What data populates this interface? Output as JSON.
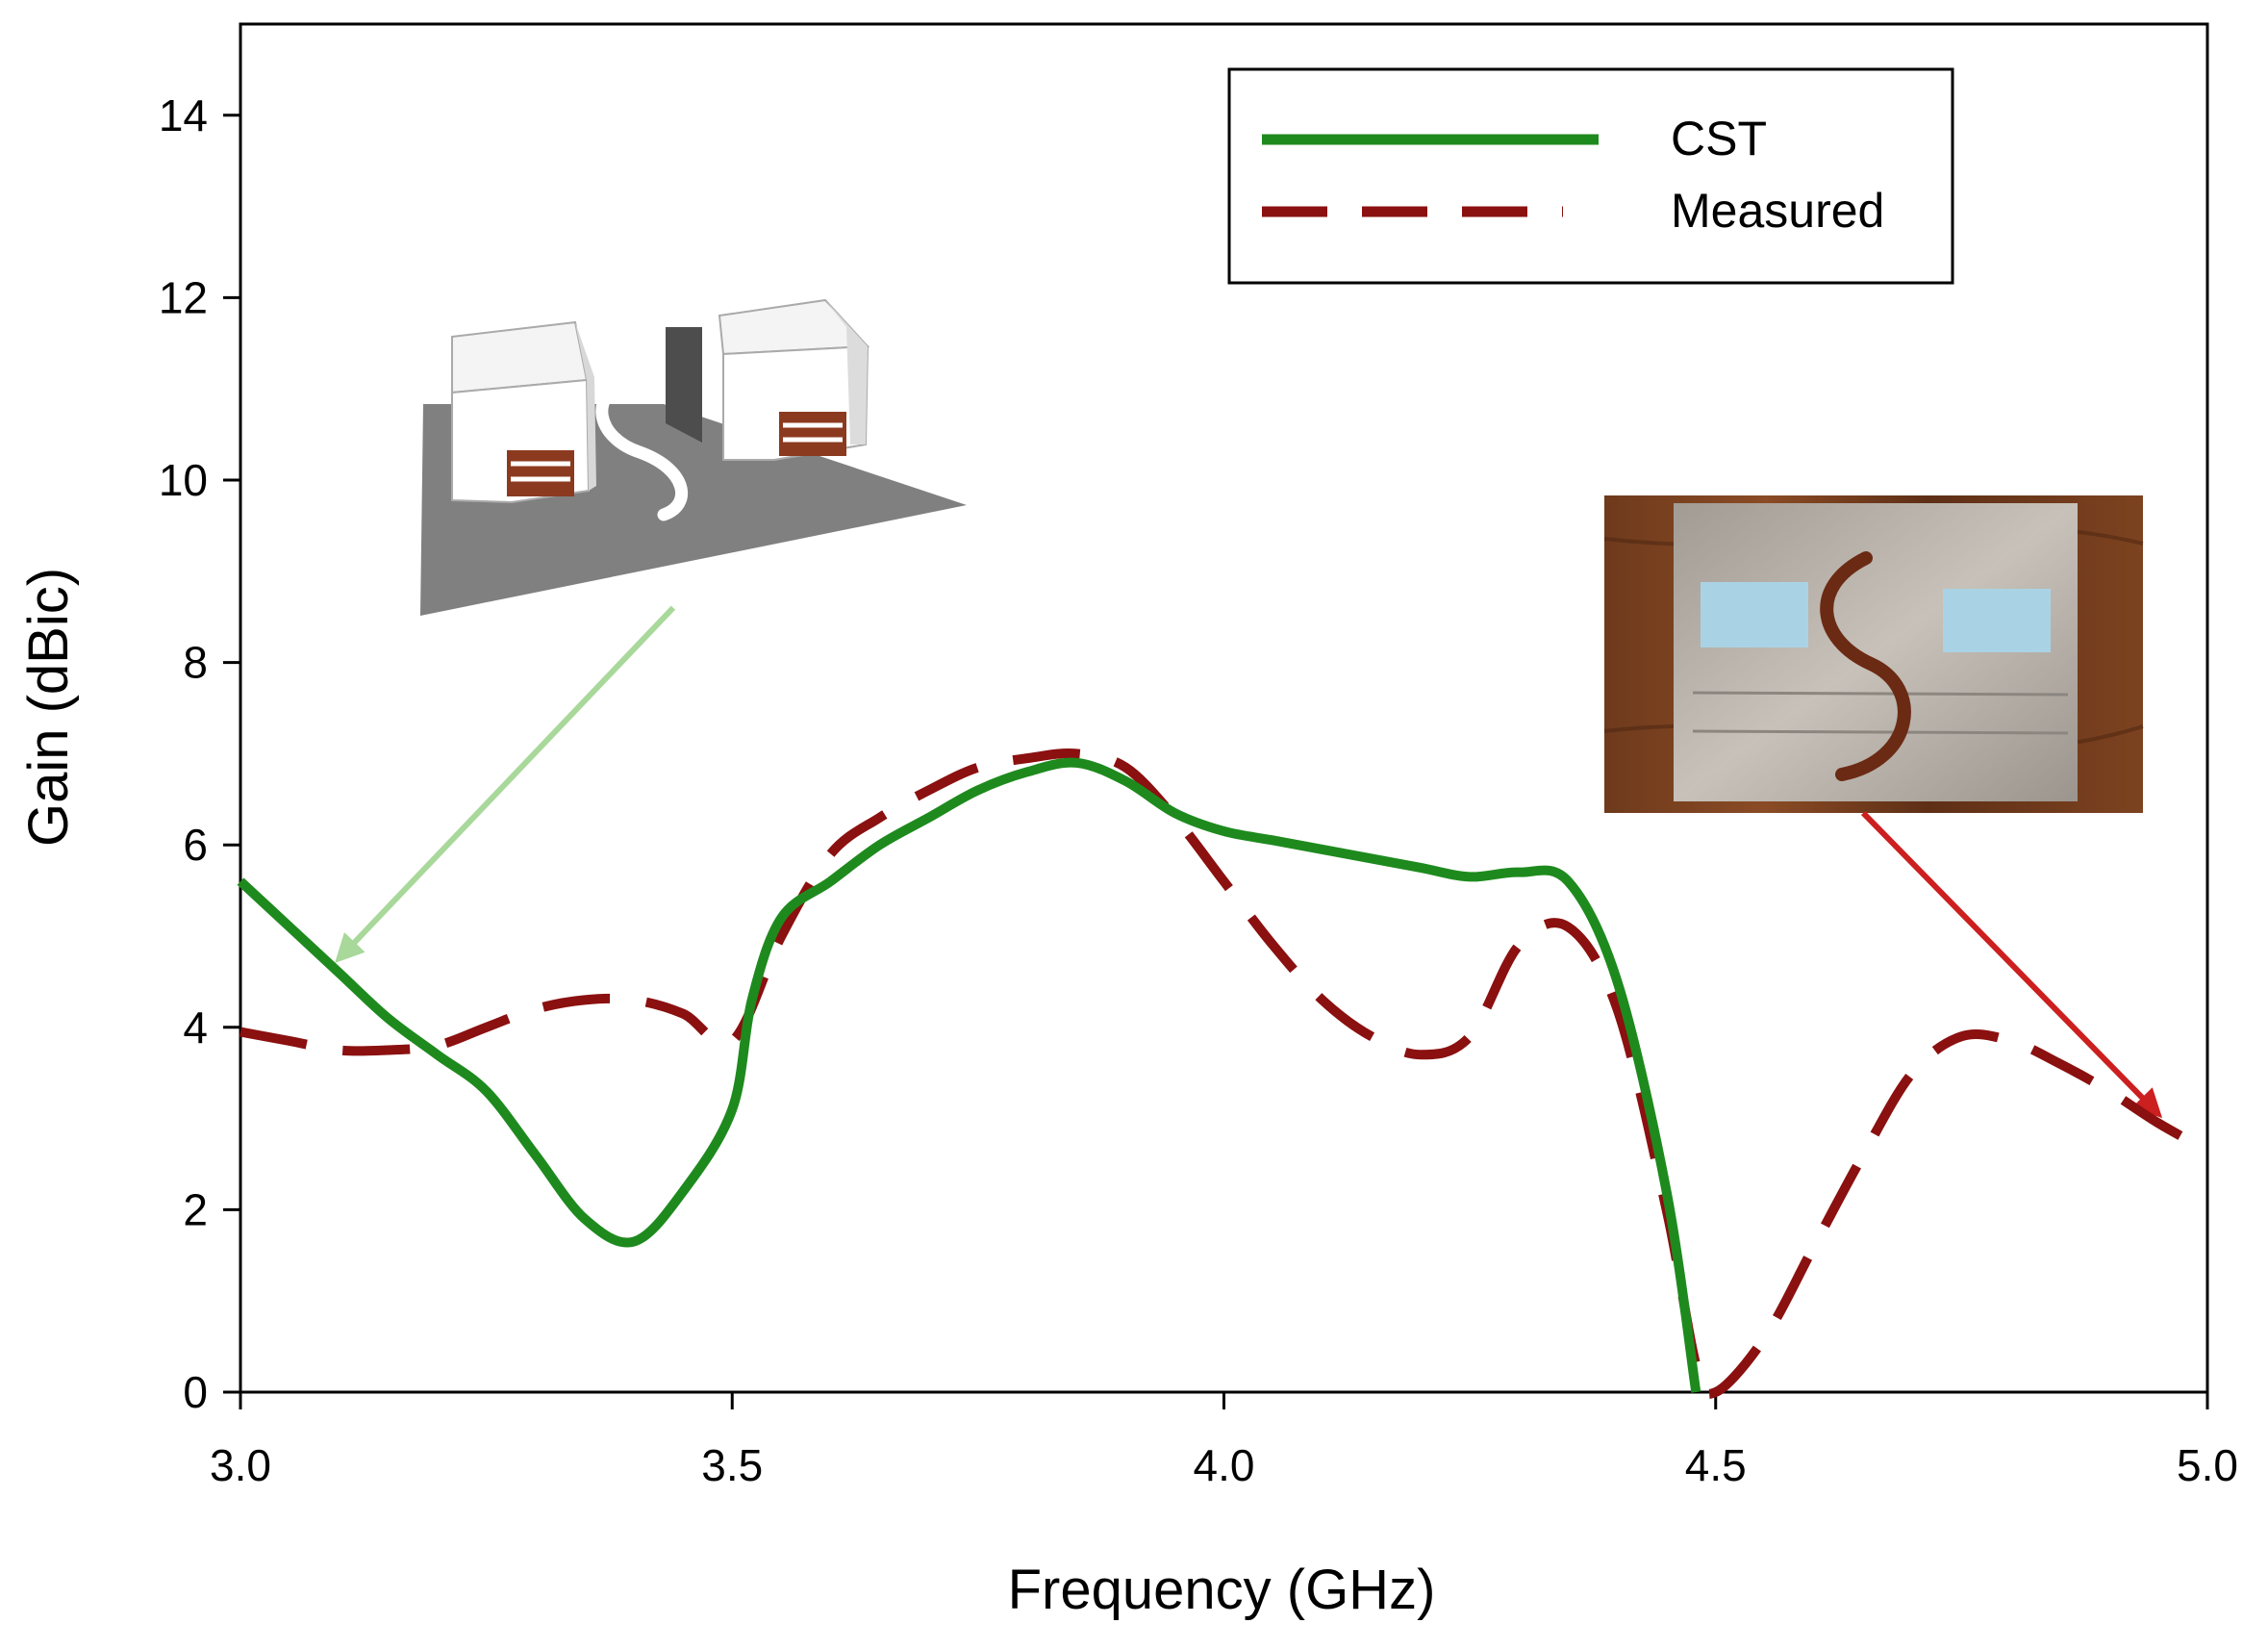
{
  "chart_data": {
    "type": "line",
    "title": "",
    "xlabel": "Frequency (GHz)",
    "ylabel": "Gain (dBic)",
    "xlim": [
      3.0,
      5.0
    ],
    "ylim": [
      0,
      15
    ],
    "xticks": [
      3.0,
      3.5,
      4.0,
      4.5,
      5.0
    ],
    "xtick_labels": [
      "3.0",
      "3.5",
      "4.0",
      "4.5",
      "5.0"
    ],
    "yticks": [
      0,
      2,
      4,
      6,
      8,
      10,
      12,
      14
    ],
    "ytick_labels": [
      "0",
      "2",
      "4",
      "6",
      "8",
      "10",
      "12",
      "14"
    ],
    "grid": false,
    "legend_position": "top-right",
    "series": [
      {
        "name": "CST",
        "color": "#1e8a1e",
        "style": "solid",
        "x": [
          3.0,
          3.05,
          3.1,
          3.15,
          3.2,
          3.25,
          3.3,
          3.35,
          3.4,
          3.45,
          3.5,
          3.52,
          3.55,
          3.6,
          3.65,
          3.7,
          3.75,
          3.8,
          3.85,
          3.9,
          3.95,
          4.0,
          4.05,
          4.1,
          4.15,
          4.2,
          4.25,
          4.3,
          4.35,
          4.4,
          4.45,
          4.48
        ],
        "y": [
          5.6,
          5.1,
          4.6,
          4.1,
          3.7,
          3.3,
          2.6,
          1.9,
          1.65,
          2.2,
          3.1,
          4.3,
          5.2,
          5.6,
          6.0,
          6.3,
          6.6,
          6.8,
          6.9,
          6.7,
          6.35,
          6.15,
          6.05,
          5.95,
          5.85,
          5.75,
          5.65,
          5.7,
          5.6,
          4.5,
          2.2,
          0.0
        ]
      },
      {
        "name": "Measured",
        "color": "#8b1010",
        "style": "dashed",
        "x": [
          3.0,
          3.05,
          3.1,
          3.15,
          3.2,
          3.25,
          3.3,
          3.35,
          3.4,
          3.45,
          3.5,
          3.55,
          3.6,
          3.65,
          3.7,
          3.75,
          3.8,
          3.85,
          3.9,
          3.95,
          4.0,
          4.05,
          4.1,
          4.15,
          4.2,
          4.25,
          4.3,
          4.35,
          4.4,
          4.45,
          4.48,
          4.5,
          4.55,
          4.6,
          4.65,
          4.7,
          4.75,
          4.8,
          4.85,
          4.9,
          4.95,
          5.0
        ],
        "y": [
          3.95,
          3.85,
          3.75,
          3.75,
          3.8,
          4.0,
          4.2,
          4.3,
          4.3,
          4.15,
          3.85,
          5.0,
          5.9,
          6.3,
          6.6,
          6.85,
          6.95,
          7.0,
          6.85,
          6.3,
          5.6,
          4.9,
          4.3,
          3.9,
          3.7,
          3.9,
          4.9,
          5.1,
          4.2,
          2.0,
          0.3,
          0.0,
          0.6,
          1.6,
          2.6,
          3.5,
          3.9,
          3.85,
          3.6,
          3.3,
          2.95,
          2.65
        ]
      }
    ],
    "annotations": {
      "simulated_model_arrow": {
        "from": [
          3.44,
          8.6
        ],
        "to": [
          3.1,
          4.75
        ],
        "color": "#a8d89a"
      },
      "prototype_photo_arrow": {
        "from": [
          4.65,
          6.35
        ],
        "to": [
          4.95,
          3.05
        ],
        "color": "#cc1f1f"
      }
    }
  }
}
